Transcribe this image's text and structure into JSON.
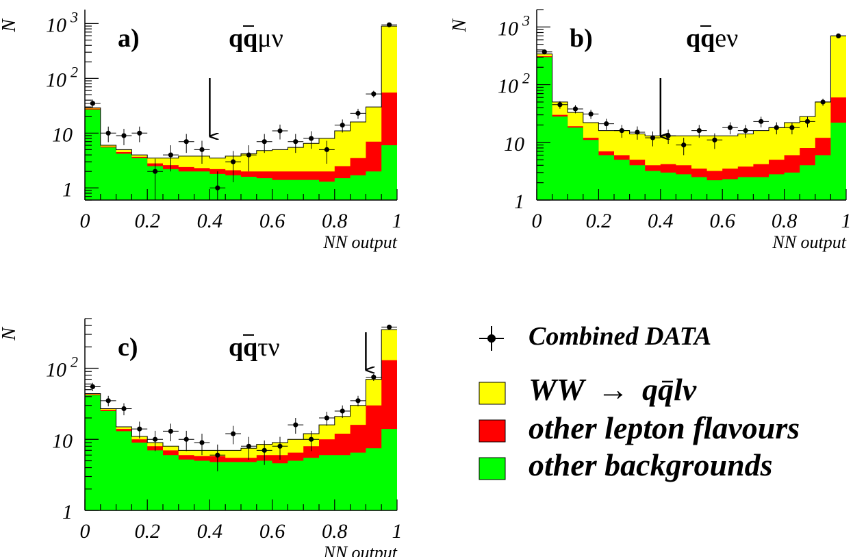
{
  "chart_data": [
    {
      "type": "histogram",
      "panel_label": "a)",
      "channel": {
        "prefix": "qq",
        "suffix": "μν"
      },
      "ylabel": "N",
      "xlabel": "NN output",
      "x_ticks": [
        "0",
        "0.2",
        "0.4",
        "0.6",
        "0.8",
        "1"
      ],
      "y_ticks": [
        {
          "value": 1,
          "base": "1",
          "exp": ""
        },
        {
          "value": 10,
          "base": "10",
          "exp": ""
        },
        {
          "value": 100,
          "base": "10",
          "exp": "2"
        },
        {
          "value": 1000,
          "base": "10",
          "exp": "3"
        }
      ],
      "xlim": [
        0,
        1
      ],
      "ylim": [
        0.6,
        1800
      ],
      "y_scale": "log",
      "cut_position": 0.4,
      "bin_edges": [
        0,
        0.05,
        0.1,
        0.15,
        0.2,
        0.25,
        0.3,
        0.35,
        0.4,
        0.45,
        0.5,
        0.55,
        0.6,
        0.65,
        0.7,
        0.75,
        0.8,
        0.85,
        0.9,
        0.95,
        1.0
      ],
      "series": [
        {
          "name": "other backgrounds",
          "values": [
            27,
            5.5,
            4.2,
            3.5,
            2.5,
            2.2,
            2.0,
            2.0,
            1.8,
            1.7,
            1.6,
            1.5,
            1.4,
            1.4,
            1.4,
            1.3,
            1.5,
            1.7,
            2.0,
            6.0
          ]
        },
        {
          "name": "other lepton flavours",
          "values": [
            28,
            5.7,
            4.5,
            3.7,
            2.8,
            2.6,
            2.4,
            2.3,
            2.2,
            2.1,
            2.0,
            2.0,
            2.0,
            2.0,
            2.0,
            2.0,
            2.5,
            3.5,
            7.0,
            55
          ]
        },
        {
          "name": "WW → qq̄lν",
          "values": [
            29,
            6.0,
            5.0,
            4.0,
            3.5,
            3.5,
            3.8,
            3.8,
            3.5,
            3.8,
            4.2,
            4.8,
            5.0,
            5.5,
            6.5,
            8.0,
            11,
            16,
            30,
            900
          ]
        }
      ],
      "data_points": [
        {
          "x": 0.025,
          "y": 35
        },
        {
          "x": 0.075,
          "y": 10
        },
        {
          "x": 0.125,
          "y": 9
        },
        {
          "x": 0.175,
          "y": 10
        },
        {
          "x": 0.225,
          "y": 2
        },
        {
          "x": 0.275,
          "y": 4
        },
        {
          "x": 0.325,
          "y": 7
        },
        {
          "x": 0.375,
          "y": 5
        },
        {
          "x": 0.425,
          "y": 1
        },
        {
          "x": 0.475,
          "y": 3
        },
        {
          "x": 0.525,
          "y": 4
        },
        {
          "x": 0.575,
          "y": 7
        },
        {
          "x": 0.625,
          "y": 11
        },
        {
          "x": 0.675,
          "y": 7
        },
        {
          "x": 0.725,
          "y": 8
        },
        {
          "x": 0.775,
          "y": 5
        },
        {
          "x": 0.825,
          "y": 14
        },
        {
          "x": 0.875,
          "y": 23
        },
        {
          "x": 0.925,
          "y": 52
        },
        {
          "x": 0.975,
          "y": 950
        }
      ]
    },
    {
      "type": "histogram",
      "panel_label": "b)",
      "channel": {
        "prefix": "qq",
        "suffix": "eν"
      },
      "ylabel": "N",
      "xlabel": "NN output",
      "x_ticks": [
        "0",
        "0.2",
        "0.4",
        "0.6",
        "0.8",
        "1"
      ],
      "y_ticks": [
        {
          "value": 1,
          "base": "1",
          "exp": ""
        },
        {
          "value": 10,
          "base": "10",
          "exp": ""
        },
        {
          "value": 100,
          "base": "10",
          "exp": "2"
        },
        {
          "value": 1000,
          "base": "10",
          "exp": "3"
        }
      ],
      "xlim": [
        0,
        1
      ],
      "ylim": [
        1,
        2000
      ],
      "y_scale": "log",
      "cut_position": 0.4,
      "bin_edges": [
        0,
        0.05,
        0.1,
        0.15,
        0.2,
        0.25,
        0.3,
        0.35,
        0.4,
        0.45,
        0.5,
        0.55,
        0.6,
        0.65,
        0.7,
        0.75,
        0.8,
        0.85,
        0.9,
        0.95,
        1.0
      ],
      "series": [
        {
          "name": "other backgrounds",
          "values": [
            300,
            28,
            18,
            11,
            6.0,
            5.0,
            4.0,
            3.2,
            3.0,
            2.8,
            2.5,
            2.2,
            2.3,
            2.5,
            2.5,
            2.8,
            3.0,
            4.0,
            6.0,
            22
          ]
        },
        {
          "name": "other lepton flavours",
          "values": [
            310,
            30,
            19,
            12,
            7.0,
            6.0,
            5.0,
            4.0,
            4.2,
            4.0,
            3.5,
            3.2,
            3.5,
            3.8,
            4.2,
            5.0,
            6.0,
            8.0,
            12,
            60
          ]
        },
        {
          "name": "WW → qq̄lν",
          "values": [
            340,
            50,
            33,
            22,
            16,
            16,
            14,
            13,
            13,
            13,
            13,
            13,
            13,
            14,
            16,
            18,
            22,
            28,
            50,
            700
          ]
        }
      ],
      "data_points": [
        {
          "x": 0.025,
          "y": 370
        },
        {
          "x": 0.075,
          "y": 45
        },
        {
          "x": 0.125,
          "y": 38
        },
        {
          "x": 0.175,
          "y": 31
        },
        {
          "x": 0.225,
          "y": 21
        },
        {
          "x": 0.275,
          "y": 16
        },
        {
          "x": 0.325,
          "y": 15
        },
        {
          "x": 0.375,
          "y": 12
        },
        {
          "x": 0.425,
          "y": 13
        },
        {
          "x": 0.475,
          "y": 9
        },
        {
          "x": 0.525,
          "y": 16
        },
        {
          "x": 0.575,
          "y": 11
        },
        {
          "x": 0.625,
          "y": 18
        },
        {
          "x": 0.675,
          "y": 16
        },
        {
          "x": 0.725,
          "y": 23
        },
        {
          "x": 0.775,
          "y": 18
        },
        {
          "x": 0.825,
          "y": 18
        },
        {
          "x": 0.875,
          "y": 23
        },
        {
          "x": 0.925,
          "y": 50
        },
        {
          "x": 0.975,
          "y": 700
        }
      ]
    },
    {
      "type": "histogram",
      "panel_label": "c)",
      "channel": {
        "prefix": "qq",
        "suffix": "τν"
      },
      "ylabel": "N",
      "xlabel": "NN output",
      "x_ticks": [
        "0",
        "0.2",
        "0.4",
        "0.6",
        "0.8",
        "1"
      ],
      "y_ticks": [
        {
          "value": 1,
          "base": "1",
          "exp": ""
        },
        {
          "value": 10,
          "base": "10",
          "exp": ""
        },
        {
          "value": 100,
          "base": "10",
          "exp": "2"
        }
      ],
      "xlim": [
        0,
        1
      ],
      "ylim": [
        1,
        500
      ],
      "y_scale": "log",
      "cut_position": 0.9,
      "bin_edges": [
        0,
        0.05,
        0.1,
        0.15,
        0.2,
        0.25,
        0.3,
        0.35,
        0.4,
        0.45,
        0.5,
        0.55,
        0.6,
        0.65,
        0.7,
        0.75,
        0.8,
        0.85,
        0.9,
        0.95,
        1.0
      ],
      "series": [
        {
          "name": "other backgrounds",
          "values": [
            42,
            25,
            13,
            9.0,
            7.0,
            6.0,
            5.2,
            5.0,
            4.8,
            4.8,
            4.8,
            5.0,
            4.6,
            5.0,
            5.5,
            6.0,
            6.0,
            6.5,
            7.5,
            14
          ]
        },
        {
          "name": "other lepton flavours",
          "values": [
            43,
            26,
            14,
            10,
            8.0,
            7.0,
            6.0,
            5.8,
            5.8,
            5.5,
            5.5,
            6.0,
            6.0,
            6.5,
            8.0,
            10,
            12,
            16,
            30,
            130
          ]
        },
        {
          "name": "WW → qq̄lν",
          "values": [
            44,
            27,
            15,
            11,
            9.0,
            8.0,
            7.0,
            7.0,
            7.0,
            7.0,
            7.5,
            8.5,
            9.0,
            10,
            12,
            16,
            21,
            30,
            70,
            350
          ]
        }
      ],
      "data_points": [
        {
          "x": 0.025,
          "y": 55
        },
        {
          "x": 0.075,
          "y": 35
        },
        {
          "x": 0.125,
          "y": 27
        },
        {
          "x": 0.175,
          "y": 14
        },
        {
          "x": 0.225,
          "y": 10
        },
        {
          "x": 0.275,
          "y": 13
        },
        {
          "x": 0.325,
          "y": 10
        },
        {
          "x": 0.375,
          "y": 9
        },
        {
          "x": 0.425,
          "y": 6
        },
        {
          "x": 0.475,
          "y": 12
        },
        {
          "x": 0.525,
          "y": 8
        },
        {
          "x": 0.575,
          "y": 7
        },
        {
          "x": 0.625,
          "y": 8
        },
        {
          "x": 0.675,
          "y": 16
        },
        {
          "x": 0.725,
          "y": 10
        },
        {
          "x": 0.775,
          "y": 20
        },
        {
          "x": 0.825,
          "y": 25
        },
        {
          "x": 0.875,
          "y": 35
        },
        {
          "x": 0.925,
          "y": 75
        },
        {
          "x": 0.975,
          "y": 380
        }
      ]
    }
  ],
  "colors": {
    "ww_signal": "#ffff00",
    "other_lepton": "#ff0000",
    "other_backgrounds": "#00ff00",
    "data_points": "#000000"
  },
  "legend": {
    "placement": "lower-right",
    "data_label": "Combined DATA",
    "ww_label": {
      "main": "WW",
      "arrow": "→",
      "q": "q",
      "qbar": "q",
      "rest": "lν"
    },
    "other_lepton_label": "other lepton flavours",
    "other_bg_label": "other backgrounds"
  }
}
